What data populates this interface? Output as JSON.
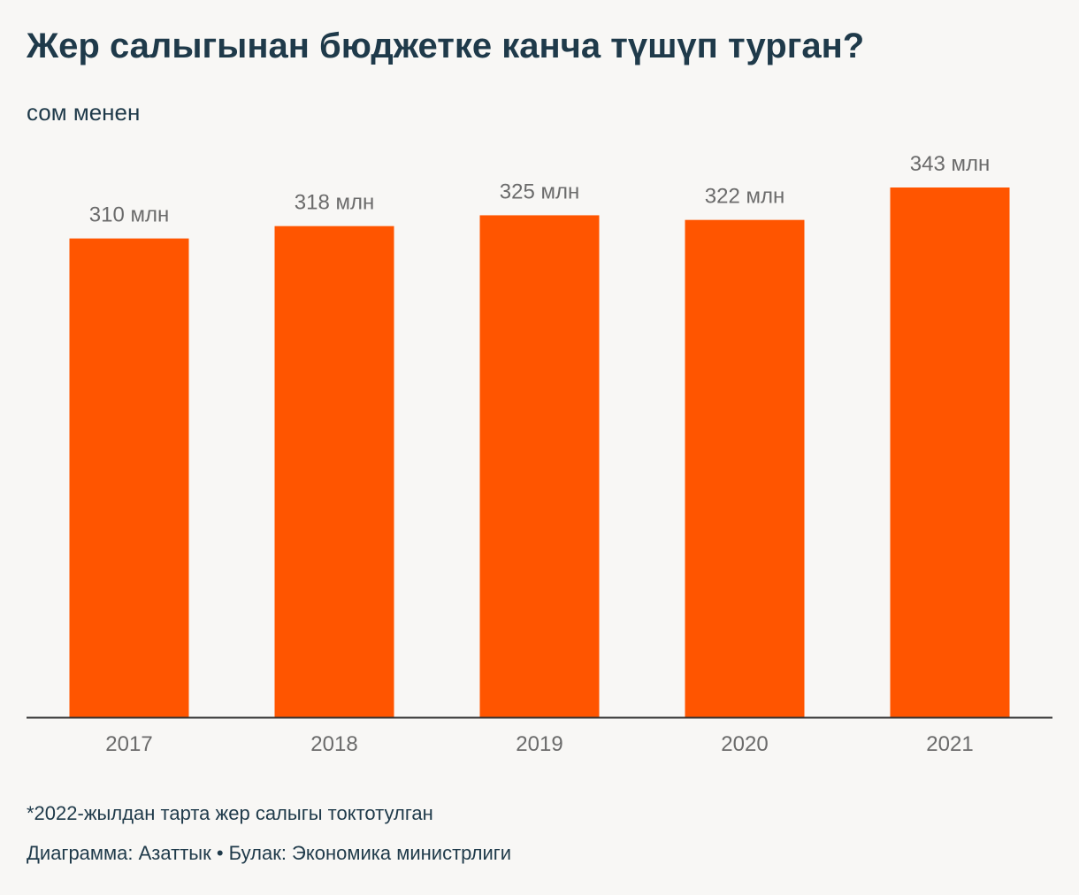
{
  "chart_data": {
    "type": "bar",
    "title": "Жер салыгынан бюджетке канча түшүп турган?",
    "subtitle": "сом менен",
    "categories": [
      "2017",
      "2018",
      "2019",
      "2020",
      "2021"
    ],
    "values": [
      310,
      318,
      325,
      322,
      343
    ],
    "value_labels": [
      "310 млн",
      "318 млн",
      "325 млн",
      "322 млн",
      "343 млн"
    ],
    "ylim": [
      0,
      343
    ],
    "grid": false,
    "legend": "none",
    "bar_color": "#ff5500",
    "axis_color": "#333333",
    "label_color": "#6b6b6b"
  },
  "footnote": "*2022-жылдан тарта жер салыгы токтотулган",
  "credits": "Диаграмма: Азаттык • Булак: Экономика министрлиги"
}
